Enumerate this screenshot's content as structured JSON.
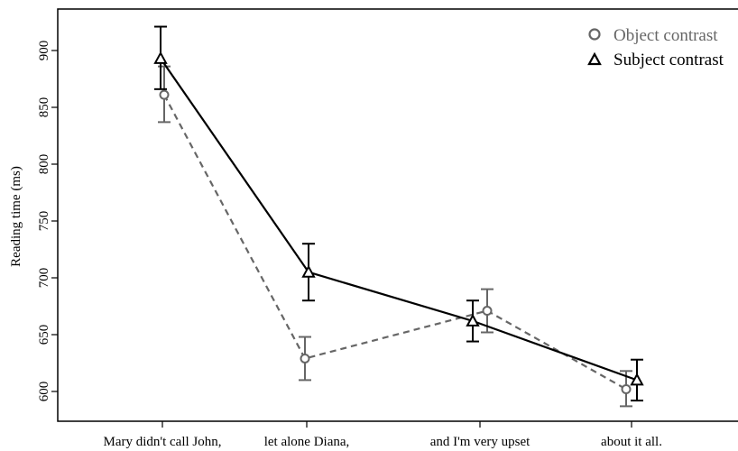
{
  "chart_data": {
    "type": "line",
    "title": "",
    "xlabel": "",
    "ylabel": "Reading time (ms)",
    "categories": [
      "Mary didn't call John,",
      "let alone Diana,",
      "and I'm very upset",
      "about it all."
    ],
    "ylim": [
      585,
      935
    ],
    "yticks": [
      600,
      650,
      700,
      750,
      800,
      850,
      900
    ],
    "grid": false,
    "legend_position": "top-right",
    "series": [
      {
        "name": "Object contrast",
        "marker": "circle",
        "line_style": "dashed",
        "color": "#666666",
        "values": [
          861,
          629,
          671,
          602
        ],
        "error_low": [
          837,
          610,
          652,
          587
        ],
        "error_high": [
          886,
          648,
          690,
          618
        ]
      },
      {
        "name": "Subject contrast",
        "marker": "triangle",
        "line_style": "solid",
        "color": "#000000",
        "values": [
          893,
          705,
          662,
          610
        ],
        "error_low": [
          866,
          680,
          644,
          592
        ],
        "error_high": [
          921,
          730,
          680,
          628
        ]
      }
    ]
  }
}
